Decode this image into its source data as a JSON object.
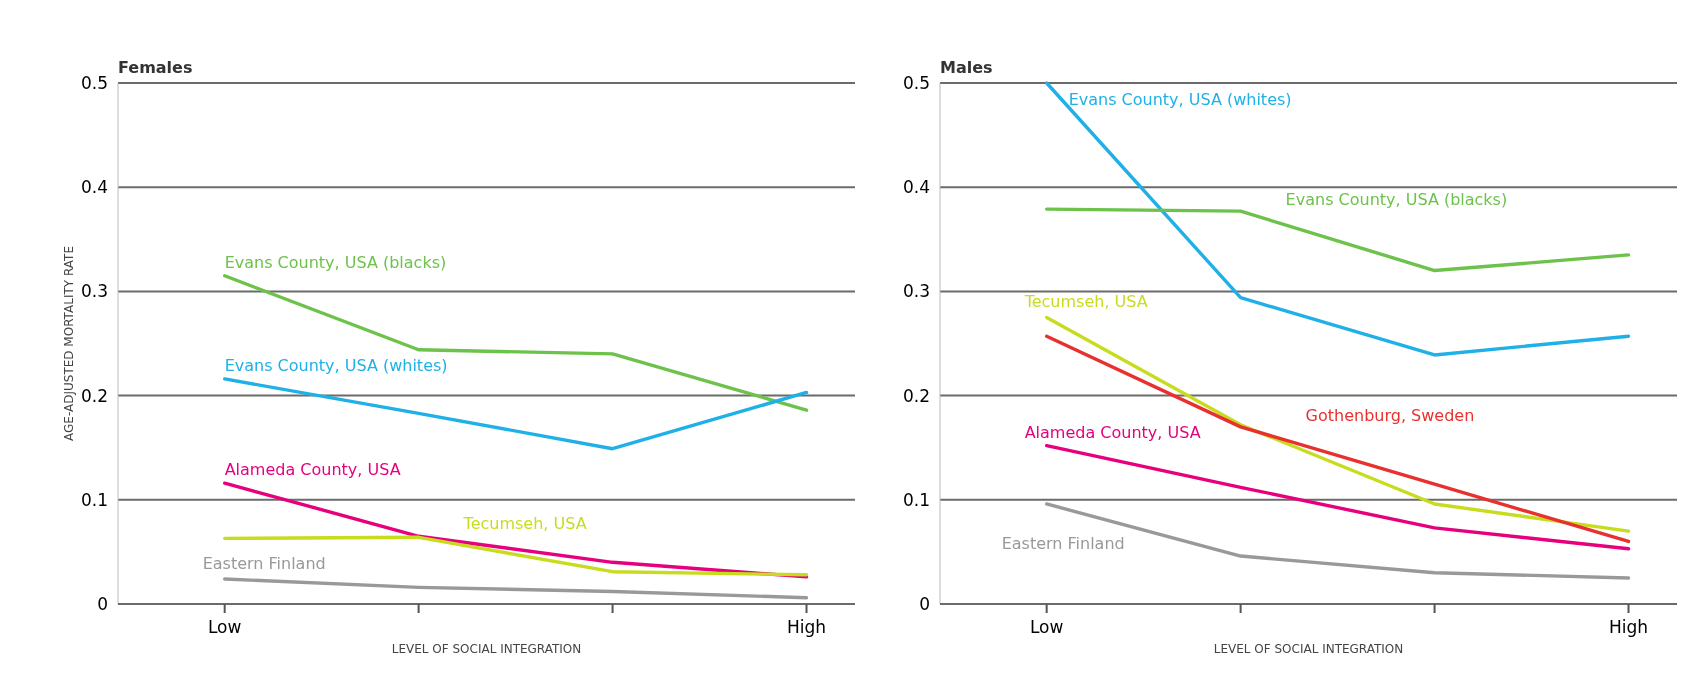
{
  "chart_data": [
    {
      "type": "line",
      "title": "Females",
      "xlabel": "LEVEL OF SOCIAL INTEGRATION",
      "ylabel": "AGE-ADJUSTED MORTALITY RATE",
      "categories": [
        "Low",
        null,
        null,
        "High"
      ],
      "ylim": [
        0,
        0.5
      ],
      "yticks": [
        0,
        0.1,
        0.2,
        0.3,
        0.4,
        0.5
      ],
      "grid": "y",
      "line_style": "solid",
      "series": [
        {
          "name": "Evans County, USA (blacks)",
          "color": "#6cc24a",
          "values": [
            0.315,
            0.244,
            0.24,
            0.186
          ]
        },
        {
          "name": "Evans County, USA (whites)",
          "color": "#1fb0e8",
          "values": [
            0.216,
            0.183,
            0.149,
            0.203
          ]
        },
        {
          "name": "Alameda County, USA",
          "color": "#e6007e",
          "values": [
            0.116,
            0.065,
            0.04,
            0.026
          ]
        },
        {
          "name": "Tecumseh, USA",
          "color": "#c8dc1e",
          "values": [
            0.063,
            0.064,
            0.031,
            0.028
          ]
        },
        {
          "name": "Eastern Finland",
          "color": "#999999",
          "values": [
            0.024,
            0.016,
            0.012,
            0.006
          ]
        }
      ]
    },
    {
      "type": "line",
      "title": "Males",
      "xlabel": "LEVEL OF SOCIAL INTEGRATION",
      "categories": [
        "Low",
        null,
        null,
        "High"
      ],
      "ylim": [
        0,
        0.5
      ],
      "yticks": [
        0,
        0.1,
        0.2,
        0.3,
        0.4,
        0.5
      ],
      "grid": "y",
      "line_style": "solid",
      "series": [
        {
          "name": "Evans County, USA (whites)",
          "color": "#1fb0e8",
          "values": [
            0.5,
            0.294,
            0.239,
            0.257
          ]
        },
        {
          "name": "Evans County, USA (blacks)",
          "color": "#6cc24a",
          "values": [
            0.379,
            0.377,
            0.32,
            0.335
          ]
        },
        {
          "name": "Tecumseh, USA",
          "color": "#c8dc1e",
          "values": [
            0.275,
            0.172,
            0.096,
            0.07
          ]
        },
        {
          "name": "Gothenburg, Sweden",
          "color": "#e8312f",
          "values": [
            0.257,
            0.17,
            0.115,
            0.06
          ]
        },
        {
          "name": "Alameda County, USA",
          "color": "#e6007e",
          "values": [
            0.152,
            0.112,
            0.073,
            0.053
          ]
        },
        {
          "name": "Eastern Finland",
          "color": "#999999",
          "values": [
            0.096,
            0.046,
            0.03,
            0.025
          ]
        }
      ]
    }
  ]
}
